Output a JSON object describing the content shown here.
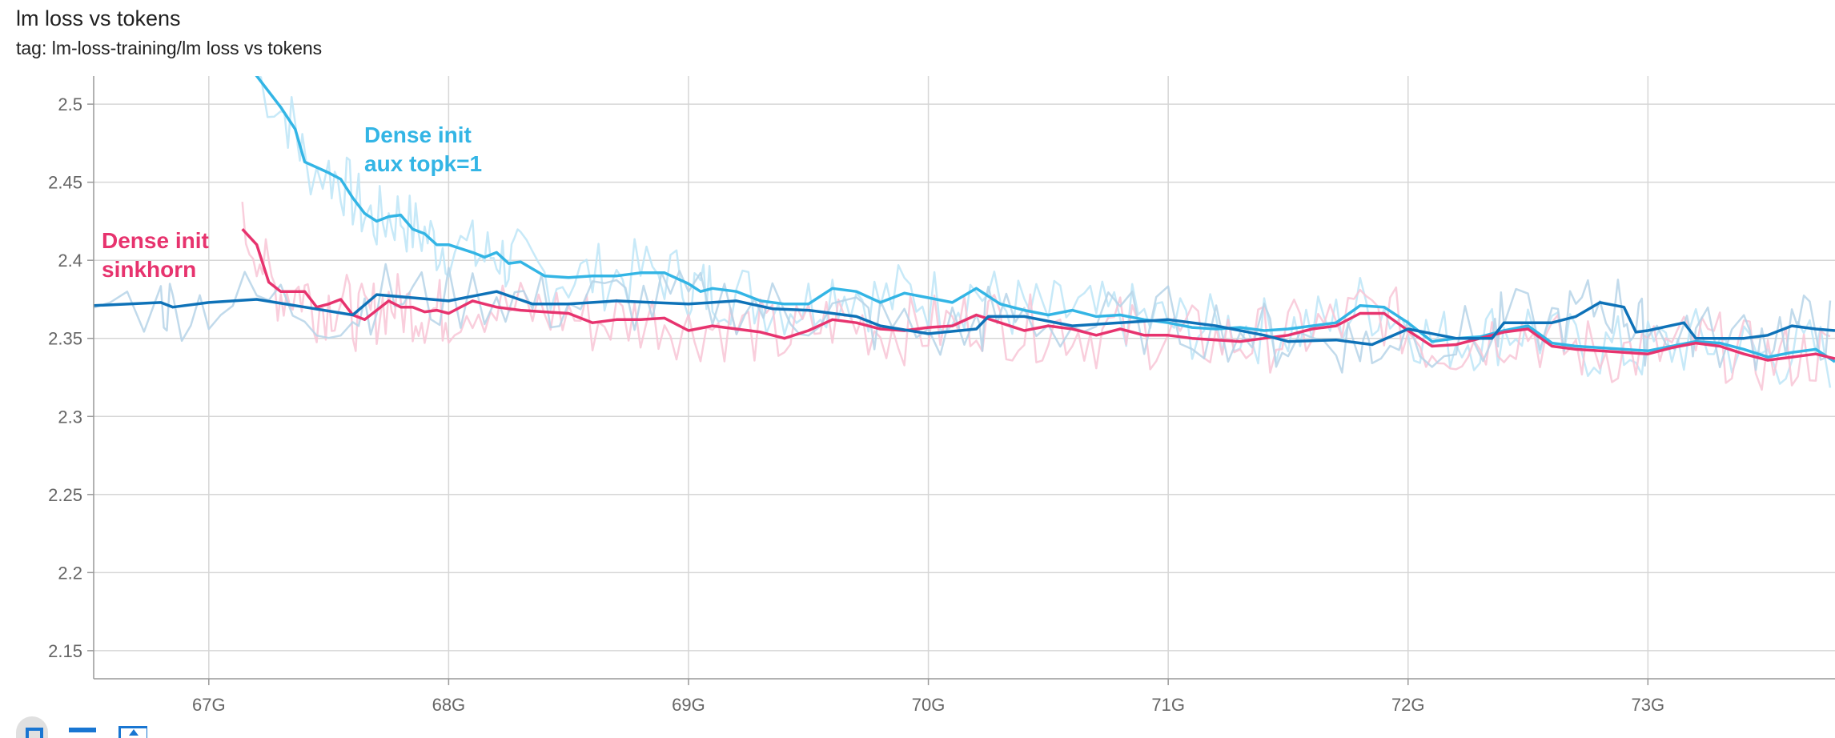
{
  "header": {
    "title": "lm loss vs tokens",
    "subtitle": "tag: lm-loss-training/lm loss vs tokens"
  },
  "toolbar": {
    "buttons": [
      {
        "name": "fit-domain-button",
        "icon": "fit-icon"
      },
      {
        "name": "toggle-log-button",
        "icon": "lines-icon"
      },
      {
        "name": "download-button",
        "icon": "download-icon"
      }
    ]
  },
  "chart_data": {
    "type": "line",
    "title": "lm loss vs tokens",
    "xlabel": "",
    "ylabel": "",
    "xlim": [
      66.52,
      73.78
    ],
    "ylim": [
      2.132,
      2.518
    ],
    "x_ticks": [
      67,
      68,
      69,
      70,
      71,
      72,
      73
    ],
    "x_tick_labels": [
      "67G",
      "68G",
      "69G",
      "70G",
      "71G",
      "72G",
      "73G"
    ],
    "y_ticks": [
      2.15,
      2.2,
      2.25,
      2.3,
      2.35,
      2.4,
      2.45,
      2.5
    ],
    "y_tick_labels": [
      "2.15",
      "2.2",
      "2.25",
      "2.3",
      "2.35",
      "2.4",
      "2.45",
      "2.5"
    ],
    "grid": true,
    "annotations": [
      {
        "series": "aux",
        "lines": [
          "Dense init",
          "aux topk=1"
        ],
        "color": "#33b5e5"
      },
      {
        "series": "sinkhorn",
        "lines": [
          "Dense init",
          "sinkhorn"
        ],
        "color": "#e7336e"
      }
    ],
    "series": [
      {
        "key": "aux",
        "color": "#33b5e5",
        "raw_color": "#bde5f7",
        "x": [
          67.19,
          67.3,
          67.36,
          67.4,
          67.5,
          67.55,
          67.6,
          67.65,
          67.7,
          67.75,
          67.8,
          67.85,
          67.9,
          67.95,
          68.0,
          68.1,
          68.15,
          68.2,
          68.25,
          68.3,
          68.4,
          68.5,
          68.6,
          68.7,
          68.8,
          68.9,
          69.0,
          69.05,
          69.1,
          69.2,
          69.3,
          69.4,
          69.5,
          69.6,
          69.7,
          69.8,
          69.9,
          70.0,
          70.1,
          70.2,
          70.3,
          70.4,
          70.5,
          70.6,
          70.7,
          70.8,
          70.9,
          71.0,
          71.1,
          71.2,
          71.3,
          71.4,
          71.5,
          71.6,
          71.7,
          71.8,
          71.9,
          72.0,
          72.1,
          72.2,
          72.3,
          72.4,
          72.5,
          72.6,
          72.7,
          72.8,
          72.9,
          73.0,
          73.1,
          73.2,
          73.3,
          73.4,
          73.5,
          73.6,
          73.7,
          73.78
        ],
        "values": [
          2.52,
          2.498,
          2.484,
          2.463,
          2.456,
          2.452,
          2.44,
          2.43,
          2.425,
          2.428,
          2.429,
          2.42,
          2.417,
          2.41,
          2.41,
          2.405,
          2.402,
          2.405,
          2.398,
          2.399,
          2.39,
          2.389,
          2.39,
          2.39,
          2.392,
          2.392,
          2.385,
          2.38,
          2.382,
          2.38,
          2.374,
          2.372,
          2.372,
          2.382,
          2.38,
          2.373,
          2.379,
          2.376,
          2.373,
          2.382,
          2.372,
          2.368,
          2.365,
          2.368,
          2.364,
          2.365,
          2.362,
          2.36,
          2.357,
          2.356,
          2.357,
          2.355,
          2.356,
          2.358,
          2.36,
          2.371,
          2.37,
          2.36,
          2.348,
          2.35,
          2.351,
          2.355,
          2.358,
          2.347,
          2.345,
          2.344,
          2.343,
          2.342,
          2.345,
          2.348,
          2.347,
          2.343,
          2.338,
          2.341,
          2.343,
          2.335
        ]
      },
      {
        "key": "sinkhorn",
        "color": "#e7336e",
        "raw_color": "#f8c6d6",
        "x": [
          67.14,
          67.2,
          67.25,
          67.3,
          67.35,
          67.4,
          67.45,
          67.5,
          67.55,
          67.6,
          67.65,
          67.7,
          67.75,
          67.8,
          67.85,
          67.9,
          67.95,
          68.0,
          68.1,
          68.2,
          68.3,
          68.4,
          68.5,
          68.6,
          68.7,
          68.8,
          68.9,
          69.0,
          69.1,
          69.2,
          69.3,
          69.4,
          69.5,
          69.6,
          69.7,
          69.8,
          69.9,
          70.0,
          70.1,
          70.2,
          70.3,
          70.4,
          70.5,
          70.6,
          70.7,
          70.8,
          70.9,
          71.0,
          71.1,
          71.2,
          71.3,
          71.4,
          71.5,
          71.6,
          71.7,
          71.8,
          71.9,
          72.0,
          72.1,
          72.2,
          72.3,
          72.4,
          72.5,
          72.6,
          72.7,
          72.8,
          72.9,
          73.0,
          73.1,
          73.2,
          73.3,
          73.4,
          73.5,
          73.6,
          73.7,
          73.78
        ],
        "values": [
          2.42,
          2.41,
          2.386,
          2.38,
          2.38,
          2.38,
          2.37,
          2.372,
          2.375,
          2.365,
          2.362,
          2.368,
          2.374,
          2.37,
          2.37,
          2.367,
          2.368,
          2.366,
          2.374,
          2.37,
          2.368,
          2.367,
          2.366,
          2.36,
          2.362,
          2.362,
          2.363,
          2.355,
          2.358,
          2.356,
          2.354,
          2.35,
          2.355,
          2.362,
          2.36,
          2.356,
          2.355,
          2.357,
          2.358,
          2.365,
          2.36,
          2.355,
          2.358,
          2.356,
          2.352,
          2.356,
          2.352,
          2.352,
          2.35,
          2.349,
          2.348,
          2.35,
          2.352,
          2.356,
          2.358,
          2.366,
          2.366,
          2.355,
          2.345,
          2.346,
          2.35,
          2.354,
          2.356,
          2.345,
          2.343,
          2.342,
          2.341,
          2.34,
          2.344,
          2.347,
          2.345,
          2.34,
          2.336,
          2.338,
          2.34,
          2.337
        ]
      },
      {
        "key": "baseline",
        "color": "#0e72b8",
        "raw_color": "#b6d3e8",
        "x": [
          66.52,
          66.8,
          66.85,
          67.0,
          67.2,
          67.4,
          67.6,
          67.7,
          67.85,
          68.0,
          68.2,
          68.35,
          68.5,
          68.7,
          68.85,
          69.0,
          69.2,
          69.35,
          69.5,
          69.7,
          69.8,
          70.0,
          70.2,
          70.25,
          70.4,
          70.6,
          70.8,
          71.0,
          71.2,
          71.4,
          71.5,
          71.7,
          71.8,
          71.85,
          72.0,
          72.2,
          72.35,
          72.4,
          72.6,
          72.7,
          72.8,
          72.9,
          72.95,
          73.0,
          73.15,
          73.2,
          73.4,
          73.5,
          73.6,
          73.7,
          73.78
        ],
        "values": [
          2.371,
          2.373,
          2.37,
          2.373,
          2.375,
          2.37,
          2.365,
          2.378,
          2.376,
          2.374,
          2.38,
          2.372,
          2.372,
          2.374,
          2.373,
          2.372,
          2.374,
          2.369,
          2.368,
          2.364,
          2.358,
          2.353,
          2.356,
          2.364,
          2.364,
          2.358,
          2.36,
          2.362,
          2.358,
          2.352,
          2.348,
          2.349,
          2.347,
          2.346,
          2.356,
          2.35,
          2.35,
          2.36,
          2.36,
          2.364,
          2.373,
          2.37,
          2.354,
          2.355,
          2.36,
          2.35,
          2.35,
          2.352,
          2.358,
          2.356,
          2.355
        ]
      }
    ]
  }
}
